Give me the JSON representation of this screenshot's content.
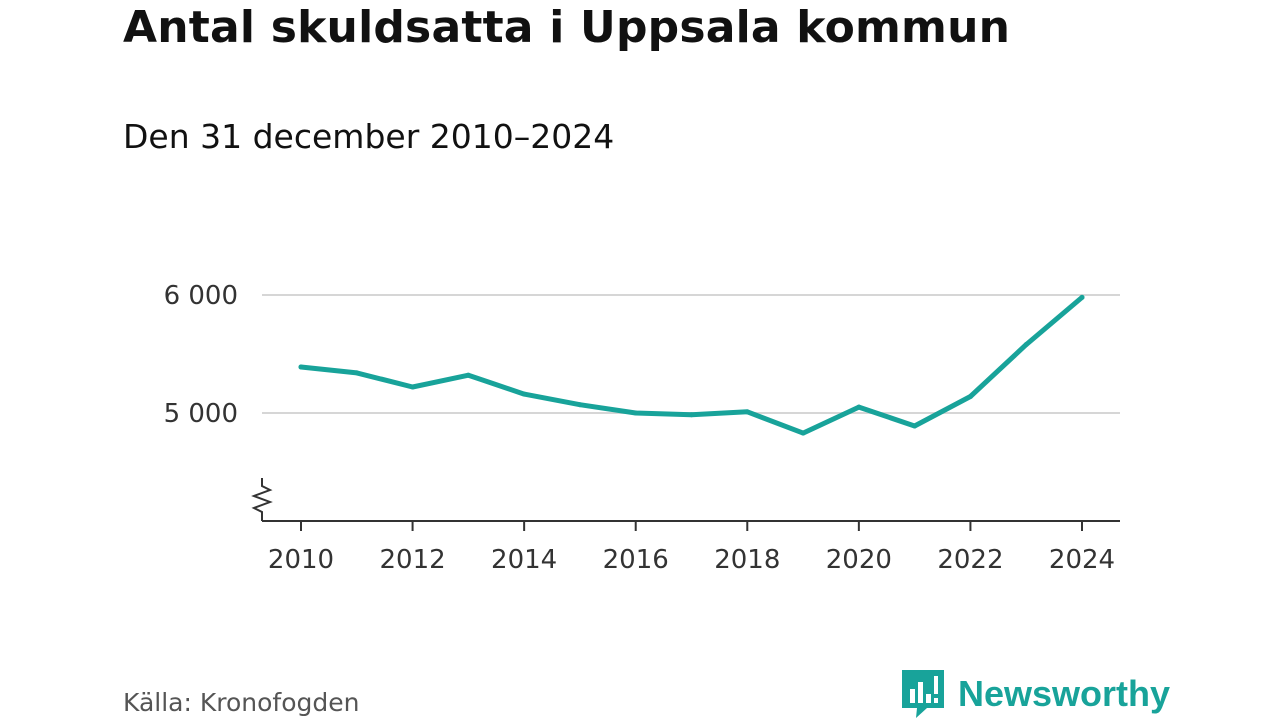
{
  "chart_data": {
    "type": "line",
    "title": "Antal skuldsatta i Uppsala kommun",
    "subtitle": "Den 31 december 2010–2024",
    "xlabel": "",
    "ylabel": "",
    "x": [
      2010,
      2011,
      2012,
      2013,
      2014,
      2015,
      2016,
      2017,
      2018,
      2019,
      2020,
      2021,
      2022,
      2023,
      2024
    ],
    "series": [
      {
        "name": "Antal skuldsatta",
        "color": "#18a39a",
        "values": [
          5390,
          5340,
          5220,
          5320,
          5160,
          5070,
          5000,
          4985,
          5010,
          4830,
          5050,
          4890,
          5140,
          5580,
          5980
        ]
      }
    ],
    "xlim": [
      2010,
      2024
    ],
    "ylim": [
      4100,
      6000
    ],
    "x_ticks": [
      2010,
      2012,
      2014,
      2016,
      2018,
      2020,
      2022,
      2024
    ],
    "x_tick_labels": [
      "2010",
      "2012",
      "2014",
      "2016",
      "2018",
      "2020",
      "2022",
      "2024"
    ],
    "y_ticks": [
      5000,
      6000
    ],
    "y_tick_labels": [
      "5 000",
      "6 000"
    ],
    "grid": true,
    "axis_break": true
  },
  "footer": {
    "source": "Källa: Kronofogden",
    "brand": "Newsworthy",
    "brand_color": "#18a39a"
  },
  "colors": {
    "grid": "#d6d6d6",
    "axis": "#333333",
    "text": "#111111"
  }
}
